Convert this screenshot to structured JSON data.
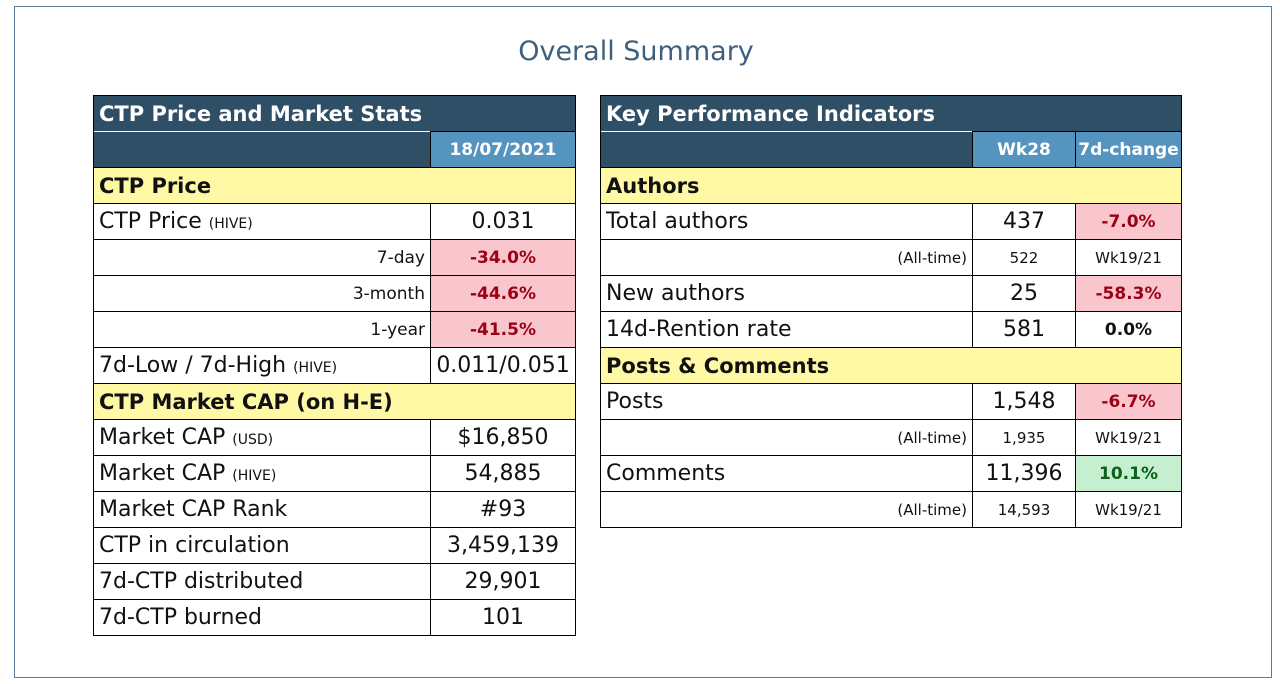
{
  "page": {
    "title": "Overall Summary"
  },
  "left": {
    "header": "CTP Price and Market Stats",
    "date": "18/07/2021",
    "price_section": "CTP Price",
    "price": {
      "label": "CTP Price",
      "unit": "(HIVE)",
      "value": "0.031"
    },
    "changes": [
      {
        "label": "7-day",
        "value": "-34.0%"
      },
      {
        "label": "3-month",
        "value": "-44.6%"
      },
      {
        "label": "1-year",
        "value": "-41.5%"
      }
    ],
    "lowhigh": {
      "label": "7d-Low / 7d-High",
      "unit": "(HIVE)",
      "value": "0.011/0.051"
    },
    "cap_section": "CTP Market CAP (on H-E)",
    "cap_usd": {
      "label": "Market CAP",
      "unit": "(USD)",
      "value": "$16,850"
    },
    "cap_hive": {
      "label": "Market CAP",
      "unit": "(HIVE)",
      "value": "54,885"
    },
    "cap_rank": {
      "label": "Market CAP Rank",
      "value": "#93"
    },
    "circulation": {
      "label": "CTP in circulation",
      "value": "3,459,139"
    },
    "distributed": {
      "label": "7d-CTP distributed",
      "value": "29,901"
    },
    "burned": {
      "label": "7d-CTP burned",
      "value": "101"
    }
  },
  "right": {
    "header": "Key Performance Indicators",
    "col_week": "Wk28",
    "col_change": "7d-change",
    "authors_section": "Authors",
    "total_authors": {
      "label": "Total authors",
      "value": "437",
      "change": "-7.0%"
    },
    "authors_alltime": {
      "label": "(All-time)",
      "value": "522",
      "week": "Wk19/21"
    },
    "new_authors": {
      "label": "New authors",
      "value": "25",
      "change": "-58.3%"
    },
    "retention": {
      "label": "14d-Rention rate",
      "value": "581",
      "change": "0.0%"
    },
    "posts_section": "Posts & Comments",
    "posts": {
      "label": "Posts",
      "value": "1,548",
      "change": "-6.7%"
    },
    "posts_alltime": {
      "label": "(All-time)",
      "value": "1,935",
      "week": "Wk19/21"
    },
    "comments": {
      "label": "Comments",
      "value": "11,396",
      "change": "10.1%"
    },
    "comments_alltime": {
      "label": "(All-time)",
      "value": "14,593",
      "week": "Wk19/21"
    }
  },
  "colors": {
    "header_dark": "#2f4f66",
    "header_sub": "#5694c0",
    "section_yellow": "#fff9a6",
    "negative_bg": "#f8c6cc",
    "negative_text": "#9c0016",
    "positive_bg": "#c6efcf",
    "positive_text": "#0b6118",
    "title": "#3e5f7f"
  }
}
